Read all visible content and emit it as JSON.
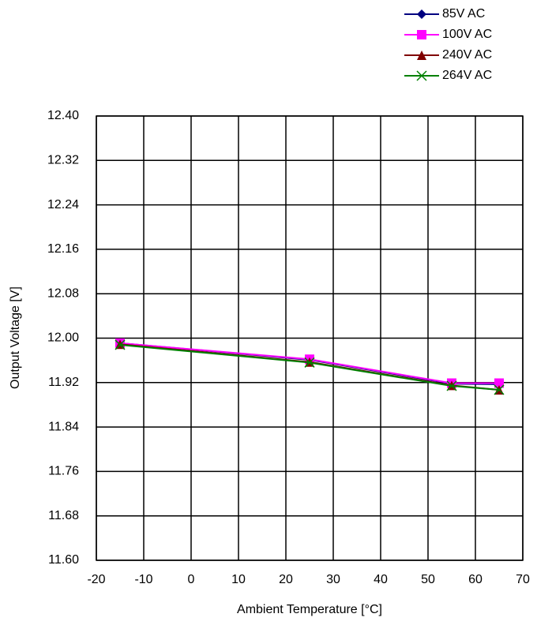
{
  "chart_data": {
    "type": "line",
    "xlabel": "Ambient Temperature [°C]",
    "ylabel": "Output Voltage [V]",
    "x": [
      -15,
      25,
      55,
      65
    ],
    "series": [
      {
        "name": "85V AC",
        "color": "#000080",
        "marker": "diamond",
        "values": [
          11.991,
          11.961,
          11.918,
          11.917
        ]
      },
      {
        "name": "100V AC",
        "color": "#ff00ff",
        "marker": "square",
        "values": [
          11.991,
          11.962,
          11.919,
          11.919
        ]
      },
      {
        "name": "240V AC",
        "color": "#800000",
        "marker": "triangle",
        "values": [
          11.989,
          11.957,
          11.915,
          11.907
        ]
      },
      {
        "name": "264V AC",
        "color": "#008000",
        "marker": "x",
        "values": [
          11.988,
          11.956,
          11.914,
          11.907
        ]
      }
    ],
    "xlim": [
      -20,
      70
    ],
    "xticks": [
      -20,
      -10,
      0,
      10,
      20,
      30,
      40,
      50,
      60,
      70
    ],
    "ylim": [
      11.6,
      12.4
    ],
    "yticks": [
      {
        "value": 11.6,
        "label": "11.60"
      },
      11.68,
      11.76,
      11.84,
      11.92,
      {
        "value": 12,
        "label": "12.00"
      },
      12.08,
      12.16,
      12.24,
      12.32,
      {
        "value": 12.4,
        "label": "12.40"
      }
    ],
    "grid": true,
    "legend": "top-right"
  }
}
